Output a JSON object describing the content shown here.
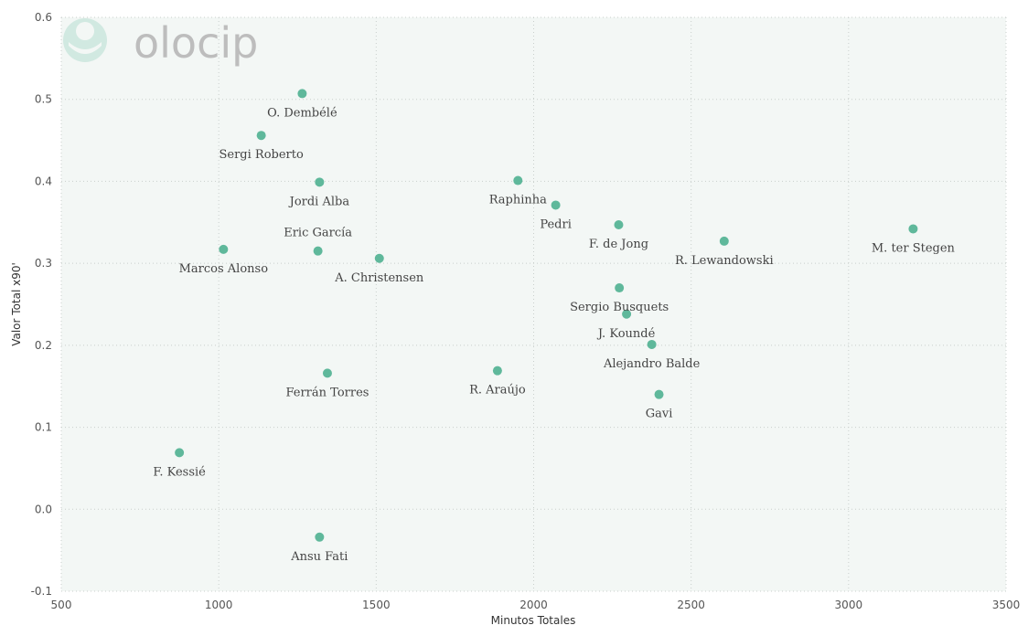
{
  "colors": {
    "plot_background": "#f3f7f5",
    "point": "#5fb89b",
    "logo_text": "#bdbdbd",
    "logo_mark": "#a9d8c9"
  },
  "logo": {
    "text": "olocip"
  },
  "chart_data": {
    "type": "scatter",
    "title": "",
    "xlabel": "Minutos Totales",
    "ylabel": "Valor Total x90'",
    "xlim": [
      500,
      3500
    ],
    "ylim": [
      -0.1,
      0.6
    ],
    "xticks": [
      500,
      1000,
      1500,
      2000,
      2500,
      3000,
      3500
    ],
    "yticks": [
      -0.1,
      0.0,
      0.1,
      0.2,
      0.3,
      0.4,
      0.5,
      0.6
    ],
    "xtick_labels": [
      "500",
      "1000",
      "1500",
      "2000",
      "2500",
      "3000",
      "3500"
    ],
    "ytick_labels": [
      "-0.1",
      "0.0",
      "0.1",
      "0.2",
      "0.3",
      "0.4",
      "0.5",
      "0.6"
    ],
    "grid": true,
    "points": [
      {
        "name": "O. Dembélé",
        "x": 1265,
        "y": 0.507,
        "label_pos": "below"
      },
      {
        "name": "Sergi Roberto",
        "x": 1135,
        "y": 0.456,
        "label_pos": "below"
      },
      {
        "name": "Jordi Alba",
        "x": 1320,
        "y": 0.399,
        "label_pos": "below"
      },
      {
        "name": "Eric García",
        "x": 1315,
        "y": 0.315,
        "label_pos": "above"
      },
      {
        "name": "Marcos Alonso",
        "x": 1015,
        "y": 0.317,
        "label_pos": "below"
      },
      {
        "name": "A. Christensen",
        "x": 1510,
        "y": 0.306,
        "label_pos": "below"
      },
      {
        "name": "Ferrán Torres",
        "x": 1345,
        "y": 0.166,
        "label_pos": "below"
      },
      {
        "name": "F. Kessié",
        "x": 875,
        "y": 0.069,
        "label_pos": "below"
      },
      {
        "name": "Ansu Fati",
        "x": 1320,
        "y": -0.034,
        "label_pos": "below"
      },
      {
        "name": "Raphinha",
        "x": 1950,
        "y": 0.401,
        "label_pos": "below"
      },
      {
        "name": "Pedri",
        "x": 2070,
        "y": 0.371,
        "label_pos": "below"
      },
      {
        "name": "F. de Jong",
        "x": 2270,
        "y": 0.347,
        "label_pos": "below"
      },
      {
        "name": "R. Araújo",
        "x": 1885,
        "y": 0.169,
        "label_pos": "below"
      },
      {
        "name": "Sergio Busquets",
        "x": 2272,
        "y": 0.27,
        "label_pos": "below"
      },
      {
        "name": "J. Koundé",
        "x": 2295,
        "y": 0.238,
        "label_pos": "below"
      },
      {
        "name": "Alejandro Balde",
        "x": 2375,
        "y": 0.201,
        "label_pos": "below"
      },
      {
        "name": "Gavi",
        "x": 2398,
        "y": 0.14,
        "label_pos": "below"
      },
      {
        "name": "R. Lewandowski",
        "x": 2605,
        "y": 0.327,
        "label_pos": "below"
      },
      {
        "name": "M. ter Stegen",
        "x": 3205,
        "y": 0.342,
        "label_pos": "below"
      }
    ]
  }
}
